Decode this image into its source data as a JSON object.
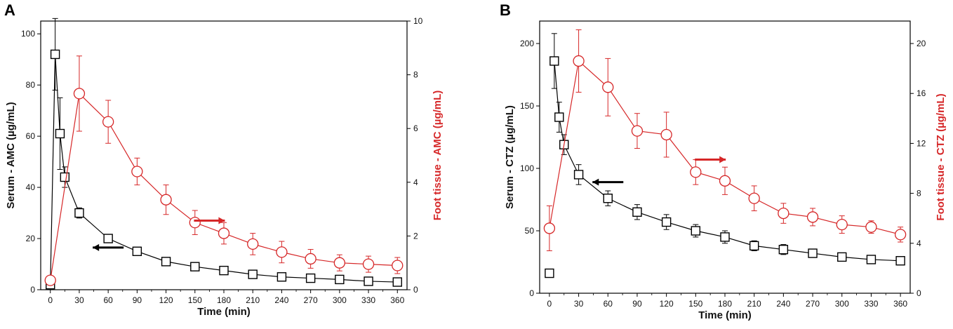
{
  "chart_data": [
    {
      "type": "line",
      "panel_label": "A",
      "xlabel": "Time (min)",
      "ylabel": "Serum - AMC (µg/mL)",
      "y2label": "Foot tissue - AMC (µg/mL)",
      "xlim": [
        -10,
        370
      ],
      "ylim": [
        0,
        105
      ],
      "y2lim": [
        0,
        10
      ],
      "xticks": [
        0,
        30,
        60,
        90,
        120,
        150,
        180,
        210,
        240,
        270,
        300,
        330,
        360
      ],
      "yticks": [
        0,
        20,
        40,
        60,
        80,
        100
      ],
      "y2ticks": [
        0,
        2,
        4,
        6,
        8,
        10
      ],
      "grid": false,
      "colors": {
        "serum": "#000000",
        "foot": "#d62728"
      },
      "series": [
        {
          "name": "Serum",
          "axis": "left",
          "marker": "square",
          "x": [
            0,
            5,
            10,
            15,
            30,
            60,
            90,
            120,
            150,
            180,
            210,
            240,
            270,
            300,
            330,
            360
          ],
          "values": [
            2,
            92,
            61,
            44,
            30,
            20,
            15,
            11,
            9,
            7.5,
            6,
            5,
            4.5,
            4,
            3.3,
            3
          ],
          "errors": [
            1,
            14,
            14,
            4,
            2,
            1.5,
            1,
            1,
            1,
            1,
            1,
            0.8,
            0.8,
            0.8,
            0.8,
            0.8
          ]
        },
        {
          "name": "Foot tissue",
          "axis": "right",
          "marker": "circle",
          "x": [
            0,
            30,
            60,
            90,
            120,
            150,
            180,
            210,
            240,
            270,
            300,
            330,
            360
          ],
          "values": [
            0.35,
            7.3,
            6.25,
            4.4,
            3.35,
            2.5,
            2.1,
            1.7,
            1.4,
            1.15,
            1.0,
            0.95,
            0.9
          ],
          "errors": [
            0.1,
            1.4,
            0.8,
            0.5,
            0.55,
            0.45,
            0.4,
            0.4,
            0.4,
            0.35,
            0.3,
            0.3,
            0.3
          ]
        }
      ],
      "annotations": [
        {
          "type": "arrow",
          "direction": "left",
          "color": "#000000",
          "x": 60,
          "y": 16.5
        },
        {
          "type": "arrow",
          "direction": "right",
          "color": "#d62728",
          "x": 165,
          "y": 27
        }
      ]
    },
    {
      "type": "line",
      "panel_label": "B",
      "xlabel": "Time (min)",
      "ylabel": "Serum - CTZ (µg/mL)",
      "y2label": "Foot tissue - CTZ (µg/mL)",
      "xlim": [
        -10,
        370
      ],
      "ylim": [
        0,
        218
      ],
      "y2lim": [
        0,
        21.8
      ],
      "xticks": [
        0,
        30,
        60,
        90,
        120,
        150,
        180,
        210,
        240,
        270,
        300,
        330,
        360
      ],
      "yticks": [
        0,
        50,
        100,
        150,
        200
      ],
      "y2ticks": [
        0,
        4,
        8,
        12,
        16,
        20
      ],
      "grid": false,
      "colors": {
        "serum": "#000000",
        "foot": "#d62728"
      },
      "series": [
        {
          "name": "Serum",
          "axis": "left",
          "marker": "square",
          "x": [
            0,
            5,
            10,
            15,
            30,
            60,
            90,
            120,
            150,
            180,
            210,
            240,
            270,
            300,
            330,
            360
          ],
          "values": [
            16,
            186,
            141,
            119,
            95,
            76,
            65,
            57,
            50,
            45,
            38,
            35,
            32,
            29,
            27,
            26
          ],
          "errors": [
            3,
            22,
            12,
            8,
            8,
            6,
            6,
            6,
            5,
            5,
            4,
            4,
            3,
            3,
            3,
            3
          ],
          "marker_only_points": [
            0
          ]
        },
        {
          "name": "Foot tissue",
          "axis": "right",
          "marker": "circle",
          "x": [
            0,
            30,
            60,
            90,
            120,
            150,
            180,
            210,
            240,
            270,
            300,
            330,
            360
          ],
          "values": [
            5.2,
            18.6,
            16.5,
            13.0,
            12.7,
            9.7,
            9.0,
            7.6,
            6.4,
            6.1,
            5.5,
            5.3,
            4.7
          ],
          "errors": [
            1.8,
            2.5,
            2.3,
            1.4,
            1.8,
            1.0,
            1.1,
            1.0,
            0.8,
            0.7,
            0.7,
            0.5,
            0.6
          ]
        }
      ],
      "annotations": [
        {
          "type": "arrow",
          "direction": "left",
          "color": "#000000",
          "x": 60,
          "y": 89
        },
        {
          "type": "arrow",
          "direction": "right",
          "color": "#d62728",
          "x": 165,
          "y": 107
        }
      ]
    }
  ]
}
